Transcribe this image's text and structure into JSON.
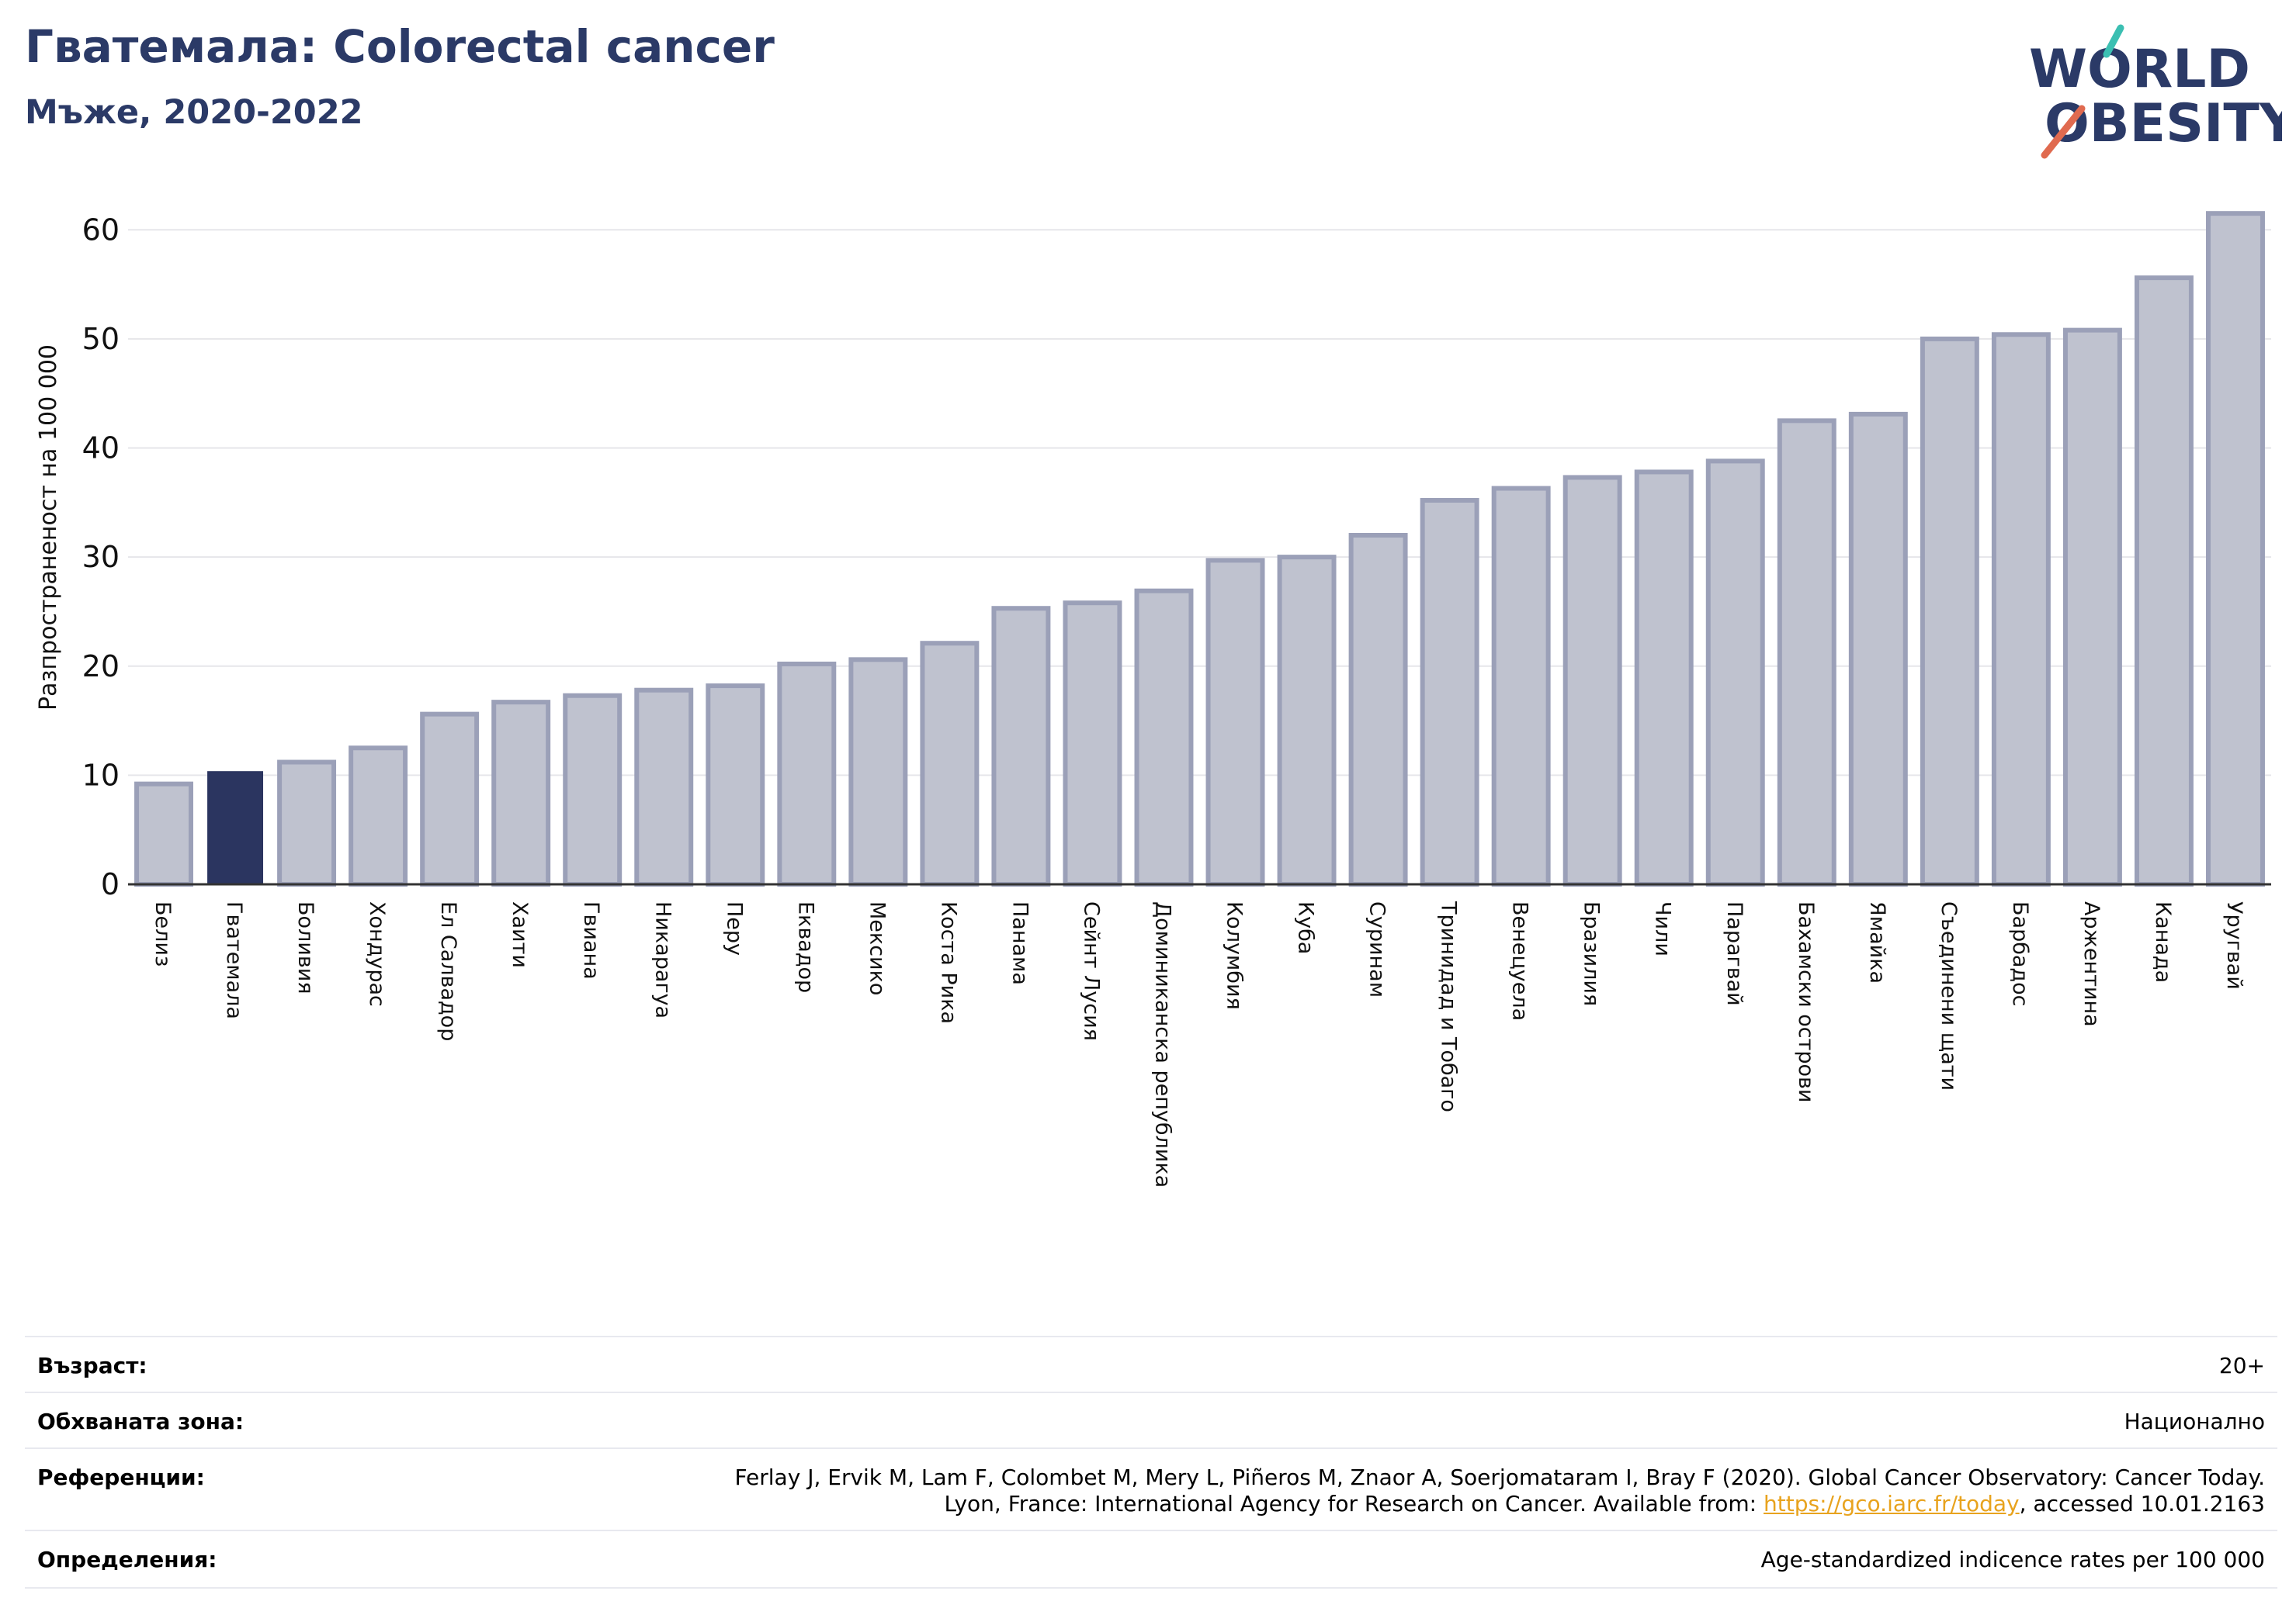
{
  "header": {
    "title": "Гватемала: Colorectal cancer",
    "subtitle": "Мъже, 2020-2022"
  },
  "logo": {
    "line1": "WORLD",
    "line2": "OBESITY",
    "colors": {
      "text": "#2b3a67",
      "slash_top": "#3bbfb2",
      "slash_bottom": "#e06a4f"
    }
  },
  "chart_data": {
    "type": "bar",
    "title": "Гватемала: Colorectal cancer",
    "subtitle": "Мъже, 2020-2022",
    "ylabel": "Разпространеност  на 100 000",
    "xlabel": "",
    "ylim": [
      0,
      64
    ],
    "yticks": [
      0,
      10,
      20,
      30,
      40,
      50,
      60
    ],
    "grid": true,
    "highlight": "Гватемала",
    "colors": {
      "bar": "#bfc2cf",
      "bar_edge": "#9ba0b8",
      "highlight": "#2b3560",
      "grid": "#e6e6ea",
      "axis": "#333333"
    },
    "categories": [
      "Белиз",
      "Гватемала",
      "Боливия",
      "Хондурас",
      "Ел Салвадор",
      "Хаити",
      "Гвиана",
      "Никарагуа",
      "Перу",
      "Еквадор",
      "Мексико",
      "Коста Рика",
      "Панама",
      "Сейнт Лусия",
      "Доминиканска република",
      "Колумбия",
      "Куба",
      "Суринам",
      "Тринидад и Тобаго",
      "Венецуела",
      "Бразилия",
      "Чили",
      "Парагвай",
      "Бахамски острови",
      "Ямайка",
      "Съединени щати",
      "Барбадос",
      "Аржентина",
      "Канада",
      "Уругвай"
    ],
    "values": [
      9.2,
      10.3,
      11.2,
      12.5,
      15.6,
      16.7,
      17.3,
      17.8,
      18.2,
      20.2,
      20.6,
      22.1,
      25.3,
      25.8,
      26.9,
      29.7,
      30.0,
      32.0,
      35.2,
      36.3,
      37.3,
      37.8,
      38.8,
      42.5,
      43.1,
      50.0,
      50.4,
      50.8,
      55.6,
      61.5
    ]
  },
  "info": {
    "age_label": "Възраст:",
    "age_value": "20+",
    "area_label": "Обхваната зона:",
    "area_value": "Национално",
    "ref_label": "Референции:",
    "ref_line1": "Ferlay J, Ervik M, Lam F, Colombet M, Mery L, Piñeros M, Znaor A, Soerjomataram I, Bray F (2020). Global Cancer Observatory: Cancer Today.",
    "ref_line2_pre": "Lyon, France: International Agency for Research on Cancer. Available from: ",
    "ref_link": "https://gco.iarc.fr/today",
    "ref_line2_post": ", accessed 10.01.2163",
    "def_label": "Определения:",
    "def_value": "Age-standardized indicence rates per 100 000"
  }
}
